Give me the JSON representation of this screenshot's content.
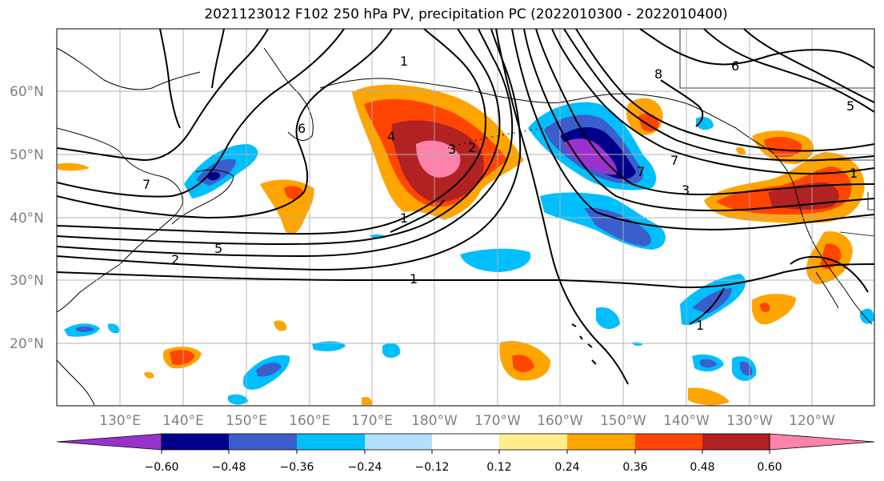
{
  "title": "2021123012 F102 250 hPa PV, precipitation PC (2022010300 - 2022010400)",
  "map": {
    "lat_labels": [
      "60°N",
      "50°N",
      "40°N",
      "30°N",
      "20°N"
    ],
    "lon_labels": [
      "130°E",
      "140°E",
      "150°E",
      "160°E",
      "170°E",
      "180°W",
      "170°W",
      "160°W",
      "150°W",
      "140°W",
      "130°W",
      "120°W"
    ],
    "contour_labels": [
      "1",
      "1",
      "2",
      "3",
      "4",
      "5",
      "6",
      "7",
      "7",
      "8",
      "1",
      "1",
      "2",
      "3",
      "5",
      "6",
      "7",
      "1"
    ]
  },
  "colorbar": {
    "tick_labels": [
      "−0.60",
      "−0.48",
      "−0.36",
      "−0.24",
      "−0.12",
      "0.12",
      "0.24",
      "0.36",
      "0.48",
      "0.60"
    ],
    "colors": [
      "#9932cc",
      "#00008b",
      "#3a5fcd",
      "#00bfff",
      "#b0e2ff",
      "#ffffff",
      "#ffec8b",
      "#ffa500",
      "#ff4500",
      "#b22222",
      "#ff82ab"
    ]
  }
}
